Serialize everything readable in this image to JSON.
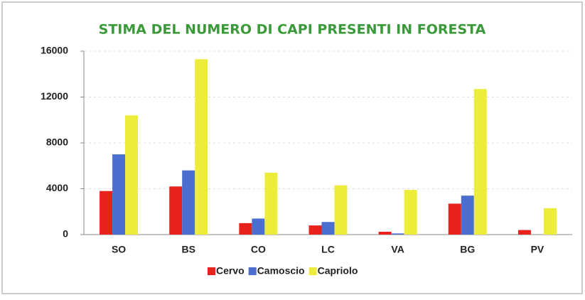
{
  "chart_data": {
    "type": "bar",
    "title": "STIMA DEL NUMERO DI CAPI PRESENTI IN FORESTA",
    "categories": [
      "SO",
      "BS",
      "CO",
      "LC",
      "VA",
      "BG",
      "PV"
    ],
    "series": [
      {
        "name": "Cervo",
        "color": "#e8231e",
        "values": [
          3800,
          4200,
          1000,
          800,
          250,
          2700,
          400
        ]
      },
      {
        "name": "Camoscio",
        "color": "#4a6fd0",
        "values": [
          7000,
          5600,
          1400,
          1100,
          100,
          3400,
          0
        ]
      },
      {
        "name": "Capriolo",
        "color": "#ecec3a",
        "values": [
          10400,
          15300,
          5400,
          4300,
          3900,
          12700,
          2300
        ]
      }
    ],
    "ylim": [
      0,
      16000
    ],
    "yticks": [
      0,
      4000,
      8000,
      12000,
      16000
    ],
    "grid": true
  }
}
